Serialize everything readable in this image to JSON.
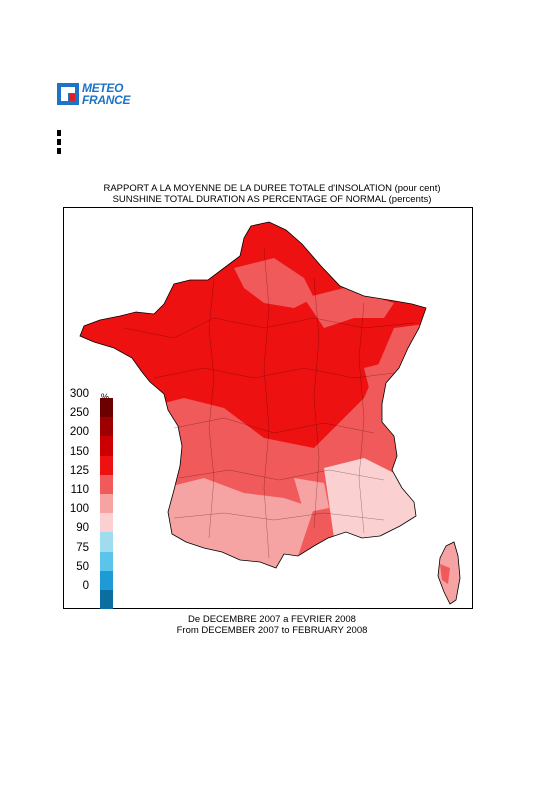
{
  "logo": {
    "line1": "METEO",
    "line2": "FRANCE"
  },
  "title": {
    "line1": "RAPPORT A LA MOYENNE DE LA DUREE TOTALE d'INSOLATION (pour cent)",
    "line2": "SUNSHINE TOTAL DURATION AS PERCENTAGE OF NORMAL (percents)"
  },
  "legend": {
    "unit": "%",
    "items": [
      {
        "label": "300",
        "color": "#6b0000"
      },
      {
        "label": "250",
        "color": "#9e0000"
      },
      {
        "label": "200",
        "color": "#cc0000"
      },
      {
        "label": "150",
        "color": "#ee1111"
      },
      {
        "label": "125",
        "color": "#f05a5a"
      },
      {
        "label": "110",
        "color": "#f5a3a3"
      },
      {
        "label": "100",
        "color": "#fbd0d0"
      },
      {
        "label": "90",
        "color": "#9fdcf0"
      },
      {
        "label": "75",
        "color": "#5cc3ea"
      },
      {
        "label": "50",
        "color": "#1e9ad6"
      },
      {
        "label": "0",
        "color": "#0b6e9e"
      }
    ]
  },
  "footer": {
    "line1": "De DECEMBRE 2007 a FEVRIER 2008",
    "line2": "From DECEMBER 2007 to FEBRUARY 2008"
  },
  "map": {
    "region": "France",
    "zones": [
      {
        "name": "north-west and centre",
        "class": "150-200",
        "color": "#ee1111"
      },
      {
        "name": "north-east",
        "class": "150-200",
        "color": "#ee1111"
      },
      {
        "name": "west and centre-south",
        "class": "125-150",
        "color": "#f05a5a"
      },
      {
        "name": "south-west",
        "class": "110-125",
        "color": "#f5a3a3"
      },
      {
        "name": "south-east alps",
        "class": "100-110",
        "color": "#fbd0d0"
      },
      {
        "name": "corsica",
        "class": "110-150",
        "color": "#f5a3a3"
      }
    ]
  }
}
